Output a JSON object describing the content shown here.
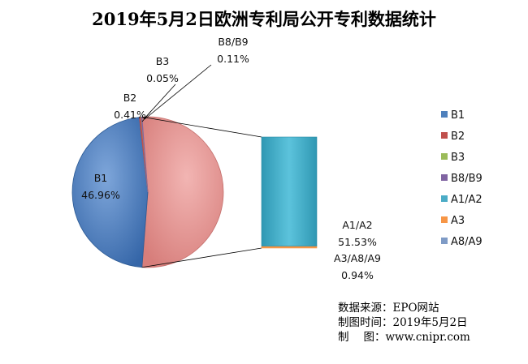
{
  "chart_data": {
    "type": "bar-of-pie",
    "title": "2019年5月2日欧洲专利局公开专利数据统计",
    "pie": [
      {
        "name": "B1",
        "value": 46.96,
        "label": "46.96%",
        "color": "#4F81BD"
      },
      {
        "name": "B2",
        "value": 0.41,
        "label": "0.41%",
        "color": "#C0504D"
      },
      {
        "name": "B3",
        "value": 0.05,
        "label": "0.05%",
        "color": "#9BBB59"
      },
      {
        "name": "B8/B9",
        "value": 0.11,
        "label": "0.11%",
        "color": "#8064A2"
      },
      {
        "name": "A1/A2,A3,A8/A9",
        "value": 52.47,
        "label": "",
        "color": "#E89A98"
      }
    ],
    "bar": [
      {
        "name": "A1/A2",
        "value": 51.53,
        "label": "51.53%",
        "color": "#4BACC6"
      },
      {
        "name": "A3/A8/A9",
        "value": 0.94,
        "label": "0.94%",
        "color": "#F79646"
      }
    ],
    "legend": [
      {
        "name": "B1",
        "color": "#4F81BD"
      },
      {
        "name": "B2",
        "color": "#C0504D"
      },
      {
        "name": "B3",
        "color": "#9BBB59"
      },
      {
        "name": "B8/B9",
        "color": "#8064A2"
      },
      {
        "name": "A1/A2",
        "color": "#4BACC6"
      },
      {
        "name": "A3",
        "color": "#F79646"
      },
      {
        "name": "A8/A9",
        "color": "#7F9BC6"
      }
    ],
    "legend_position": "right"
  },
  "source": {
    "line1_label": "数据来源：",
    "line1_value": "EPO网站",
    "line2_label": "制图时间：",
    "line2_value": "2019年5月2日",
    "line3_label_a": "制",
    "line3_label_b": "图：",
    "line3_value": "www.cnipr.com"
  }
}
